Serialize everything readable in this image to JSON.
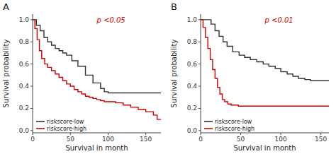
{
  "chart_data": [
    {
      "type": "step",
      "title": "A",
      "annotation": "p <0.05",
      "x_label": "Survival in month",
      "y_label": "Survival probability",
      "xlim": [
        0,
        170
      ],
      "ylim": [
        -0.02,
        1.05
      ],
      "xticks": [
        0,
        50,
        100,
        150
      ],
      "yticks": [
        {
          "value": 0,
          "label": "0.0"
        },
        0.2,
        0.4,
        0.6,
        0.8,
        {
          "value": 1,
          "label": "1.0"
        }
      ],
      "legend": "lower left",
      "series": [
        {
          "name": "riskscore-low",
          "color": "#333333",
          "x": [
            0,
            5,
            10,
            15,
            20,
            25,
            30,
            35,
            40,
            45,
            52,
            60,
            70,
            80,
            90,
            95,
            100,
            170
          ],
          "values": [
            1.0,
            0.95,
            0.9,
            0.84,
            0.8,
            0.77,
            0.74,
            0.72,
            0.7,
            0.68,
            0.63,
            0.58,
            0.5,
            0.43,
            0.38,
            0.35,
            0.34,
            0.34
          ]
        },
        {
          "name": "riskscore-high",
          "color": "#cc0000",
          "x": [
            0,
            3,
            6,
            9,
            12,
            16,
            20,
            25,
            30,
            35,
            40,
            45,
            50,
            55,
            60,
            65,
            70,
            75,
            80,
            85,
            90,
            95,
            100,
            110,
            120,
            130,
            140,
            150,
            160,
            165,
            170
          ],
          "values": [
            1.0,
            0.92,
            0.82,
            0.72,
            0.65,
            0.6,
            0.57,
            0.54,
            0.51,
            0.48,
            0.45,
            0.42,
            0.4,
            0.37,
            0.35,
            0.33,
            0.31,
            0.3,
            0.29,
            0.28,
            0.27,
            0.26,
            0.26,
            0.25,
            0.23,
            0.21,
            0.19,
            0.17,
            0.14,
            0.1,
            0.1
          ]
        }
      ]
    },
    {
      "type": "step",
      "title": "B",
      "annotation": "p <0.01",
      "x_label": "Survival in month",
      "y_label": "Survival probability",
      "xlim": [
        0,
        160
      ],
      "ylim": [
        -0.02,
        1.05
      ],
      "xticks": [
        0,
        50,
        100,
        150
      ],
      "yticks": [
        {
          "value": 0,
          "label": "0.0"
        },
        0.2,
        0.4,
        0.6,
        0.8,
        {
          "value": 1,
          "label": "1.0"
        }
      ],
      "legend": "lower left",
      "series": [
        {
          "name": "riskscore-low",
          "color": "#333333",
          "x": [
            0,
            8,
            13,
            18,
            23,
            28,
            33,
            40,
            48,
            55,
            62,
            70,
            78,
            85,
            93,
            100,
            108,
            115,
            122,
            130,
            137,
            145,
            152,
            160
          ],
          "values": [
            1.0,
            1.0,
            0.96,
            0.9,
            0.85,
            0.8,
            0.76,
            0.71,
            0.68,
            0.66,
            0.64,
            0.62,
            0.6,
            0.58,
            0.56,
            0.53,
            0.51,
            0.49,
            0.47,
            0.46,
            0.45,
            0.45,
            0.45,
            0.45
          ]
        },
        {
          "name": "riskscore-high",
          "color": "#cc0000",
          "x": [
            0,
            3,
            6,
            9,
            12,
            15,
            18,
            21,
            24,
            27,
            30,
            34,
            38,
            42,
            47,
            52,
            57,
            62,
            68,
            160
          ],
          "values": [
            1.0,
            0.93,
            0.84,
            0.74,
            0.64,
            0.55,
            0.47,
            0.39,
            0.33,
            0.28,
            0.26,
            0.24,
            0.23,
            0.23,
            0.22,
            0.22,
            0.22,
            0.22,
            0.22,
            0.22
          ]
        }
      ]
    }
  ]
}
